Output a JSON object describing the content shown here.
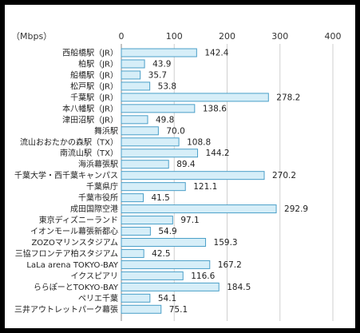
{
  "chart_data": {
    "type": "bar",
    "orientation": "horizontal",
    "unit_label": "（Mbps）",
    "xlim": [
      0,
      400
    ],
    "xticks": [
      0,
      100,
      200,
      300,
      400
    ],
    "grid": true,
    "bar_color": "#d6eef8",
    "bar_border_color": "#4a9fc8",
    "categories": [
      "西船橋駅（JR）",
      "柏駅（JR）",
      "船橋駅（JR）",
      "松戸駅（JR）",
      "千葉駅（JR）",
      "本八幡駅（JR）",
      "津田沼駅（JR）",
      "舞浜駅",
      "流山おおたかの森駅（TX）",
      "南流山駅（TX）",
      "海浜幕張駅",
      "千葉大学・西千葉キャンパス",
      "千葉県庁",
      "千葉市役所",
      "成田国際空港",
      "東京ディズニーランド",
      "イオンモール幕張新都心",
      "ZOZOマリンスタジアム",
      "三協フロンテア柏スタジアム",
      "LaLa arena TOKYO-BAY",
      "イクスピアリ",
      "ららぽーとTOKYO-BAY",
      "ペリエ千葉",
      "三井アウトレットパーク幕張"
    ],
    "values": [
      142.4,
      43.9,
      35.7,
      53.8,
      278.2,
      138.6,
      49.8,
      70.0,
      108.8,
      144.2,
      89.4,
      270.2,
      121.1,
      41.5,
      292.9,
      97.1,
      54.9,
      159.3,
      42.5,
      167.2,
      116.6,
      184.5,
      54.1,
      75.1
    ],
    "value_labels": [
      "142.4",
      "43.9",
      "35.7",
      "53.8",
      "278.2",
      "138.6",
      "49.8",
      "70.0",
      "108.8",
      "144.2",
      "89.4",
      "270.2",
      "121.1",
      "41.5",
      "292.9",
      "97.1",
      "54.9",
      "159.3",
      "42.5",
      "167.2",
      "116.6",
      "184.5",
      "54.1",
      "75.1"
    ]
  }
}
